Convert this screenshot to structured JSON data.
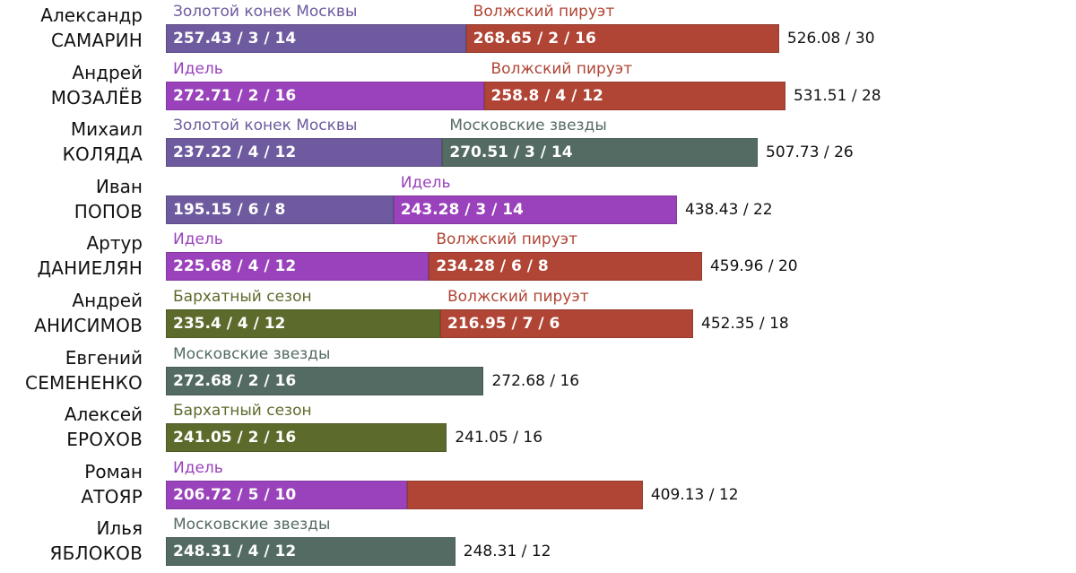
{
  "colors": {
    "Золотой конек Москвы": "#6e5a9e",
    "Волжский пируэт": "#b04535",
    "Идель": "#9a42bb",
    "Московские звезды": "#546b63",
    "Бархатный сезон": "#5c6a2b"
  },
  "chart_data": {
    "type": "bar",
    "orientation": "horizontal",
    "stacked": true,
    "x_range": [
      0,
      600
    ],
    "rows": [
      {
        "first": "Александр",
        "last": "САМАРИН",
        "total_label": "526.08 / 30",
        "segments": [
          {
            "event": "Золотой конек Москвы",
            "value": 257.43,
            "label": "257.43 / 3 / 14",
            "show_event": true
          },
          {
            "event": "Волжский пируэт",
            "value": 268.65,
            "label": "268.65 / 2 / 16",
            "show_event": true
          }
        ]
      },
      {
        "first": "Андрей",
        "last": "МОЗАЛЁВ",
        "total_label": "531.51 / 28",
        "segments": [
          {
            "event": "Идель",
            "value": 272.71,
            "label": "272.71 / 2 / 16",
            "show_event": true
          },
          {
            "event": "Волжский пируэт",
            "value": 258.8,
            "label": "258.8 / 4 / 12",
            "show_event": true
          }
        ]
      },
      {
        "first": "Михаил",
        "last": "КОЛЯДА",
        "total_label": "507.73 / 26",
        "segments": [
          {
            "event": "Золотой конек Москвы",
            "value": 237.22,
            "label": "237.22 / 4 / 12",
            "show_event": true
          },
          {
            "event": "Московские звезды",
            "value": 270.51,
            "label": "270.51 / 3 / 14",
            "show_event": true
          }
        ]
      },
      {
        "first": "Иван",
        "last": "ПОПОВ",
        "total_label": "438.43 / 22",
        "segments": [
          {
            "event": "Золотой конек Москвы",
            "value": 195.15,
            "label": "195.15 / 6 / 8",
            "show_event": false
          },
          {
            "event": "Идель",
            "value": 243.28,
            "label": "243.28 / 3 / 14",
            "show_event": true
          }
        ]
      },
      {
        "first": "Артур",
        "last": "ДАНИЕЛЯН",
        "total_label": "459.96 / 20",
        "segments": [
          {
            "event": "Идель",
            "value": 225.68,
            "label": "225.68 / 4 / 12",
            "show_event": true
          },
          {
            "event": "Волжский пируэт",
            "value": 234.28,
            "label": "234.28 / 6 / 8",
            "show_event": true
          }
        ]
      },
      {
        "first": "Андрей",
        "last": "АНИСИМОВ",
        "total_label": "452.35 / 18",
        "segments": [
          {
            "event": "Бархатный сезон",
            "value": 235.4,
            "label": "235.4 / 4 / 12",
            "show_event": true
          },
          {
            "event": "Волжский пируэт",
            "value": 216.95,
            "label": "216.95 / 7 / 6",
            "show_event": true
          }
        ]
      },
      {
        "first": "Евгений",
        "last": "СЕМЕНЕНКО",
        "total_label": "272.68 / 16",
        "segments": [
          {
            "event": "Московские звезды",
            "value": 272.68,
            "label": "272.68 / 2 / 16",
            "show_event": true
          }
        ]
      },
      {
        "first": "Алексей",
        "last": "ЕРОХОВ",
        "total_label": "241.05 / 16",
        "segments": [
          {
            "event": "Бархатный сезон",
            "value": 241.05,
            "label": "241.05 / 2 / 16",
            "show_event": true
          }
        ]
      },
      {
        "first": "Роман",
        "last": "АТОЯР",
        "total_label": "409.13 / 12",
        "segments": [
          {
            "event": "Идель",
            "value": 206.72,
            "label": "206.72 / 5 / 10",
            "show_event": true
          },
          {
            "event": "Волжский пируэт",
            "value": 202.41,
            "label": "",
            "show_event": false
          }
        ]
      },
      {
        "first": "Илья",
        "last": "ЯБЛОКОВ",
        "total_label": "248.31 / 12",
        "segments": [
          {
            "event": "Московские звезды",
            "value": 248.31,
            "label": "248.31 / 4 / 12",
            "show_event": true
          }
        ]
      }
    ]
  }
}
